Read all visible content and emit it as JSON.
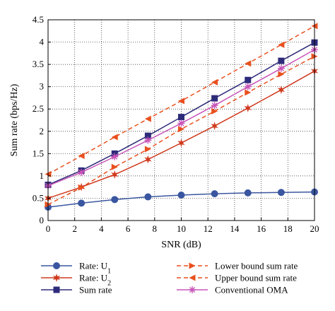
{
  "chart_data": {
    "type": "line",
    "xlabel": "SNR (dB)",
    "ylabel": "Sum rate (bps/Hz)",
    "xlim": [
      0,
      20
    ],
    "ylim": [
      0,
      4.5
    ],
    "xticks": [
      0,
      2,
      4,
      6,
      8,
      10,
      12,
      14,
      16,
      18,
      20
    ],
    "yticks": [
      0,
      0.5,
      1,
      1.5,
      2,
      2.5,
      3,
      3.5,
      4,
      4.5
    ],
    "grid": true,
    "legend_position": "bottom",
    "series": [
      {
        "name": "Rate: U",
        "name_sub": "1",
        "color": "#3a56a0",
        "line": "solid",
        "marker": "circle",
        "x": [
          0,
          2.5,
          5,
          7.5,
          10,
          12.5,
          15,
          17.5,
          20
        ],
        "y": [
          0.3,
          0.39,
          0.47,
          0.53,
          0.57,
          0.6,
          0.62,
          0.63,
          0.64
        ]
      },
      {
        "name": "Rate: U",
        "name_sub": "2",
        "color": "#d03a1e",
        "line": "solid",
        "marker": "star",
        "x": [
          0,
          2.5,
          5,
          7.5,
          10,
          12.5,
          15,
          17.5,
          20
        ],
        "y": [
          0.5,
          0.75,
          1.03,
          1.37,
          1.74,
          2.12,
          2.52,
          2.93,
          3.35
        ]
      },
      {
        "name": "Sum rate",
        "color": "#2d2b7a",
        "line": "solid",
        "marker": "square",
        "x": [
          0,
          2.5,
          5,
          7.5,
          10,
          12.5,
          15,
          17.5,
          20
        ],
        "y": [
          0.8,
          1.12,
          1.5,
          1.9,
          2.32,
          2.74,
          3.15,
          3.58,
          3.99
        ]
      },
      {
        "name": "Lower bound sum rate",
        "color": "#e8501f",
        "line": "dashed",
        "marker": "triangle-right",
        "x": [
          0,
          2.5,
          5,
          7.5,
          10,
          12.5,
          15,
          17.5,
          20
        ],
        "y": [
          0.36,
          0.74,
          1.2,
          1.6,
          2.05,
          2.45,
          2.87,
          3.28,
          3.68
        ]
      },
      {
        "name": "Upper bound sum rate",
        "color": "#e8501f",
        "line": "dashed",
        "marker": "triangle-left",
        "x": [
          0,
          2.5,
          5,
          7.5,
          10,
          12.5,
          15,
          17.5,
          20
        ],
        "y": [
          1.04,
          1.45,
          1.87,
          2.28,
          2.68,
          3.1,
          3.52,
          3.94,
          4.36
        ]
      },
      {
        "name": "Conventional OMA",
        "color": "#c855b8",
        "line": "solid",
        "marker": "asterisk",
        "x": [
          0,
          2.5,
          5,
          7.5,
          10,
          12.5,
          15,
          17.5,
          20
        ],
        "y": [
          0.78,
          1.08,
          1.43,
          1.8,
          2.18,
          2.58,
          3.0,
          3.41,
          3.83
        ]
      }
    ]
  }
}
